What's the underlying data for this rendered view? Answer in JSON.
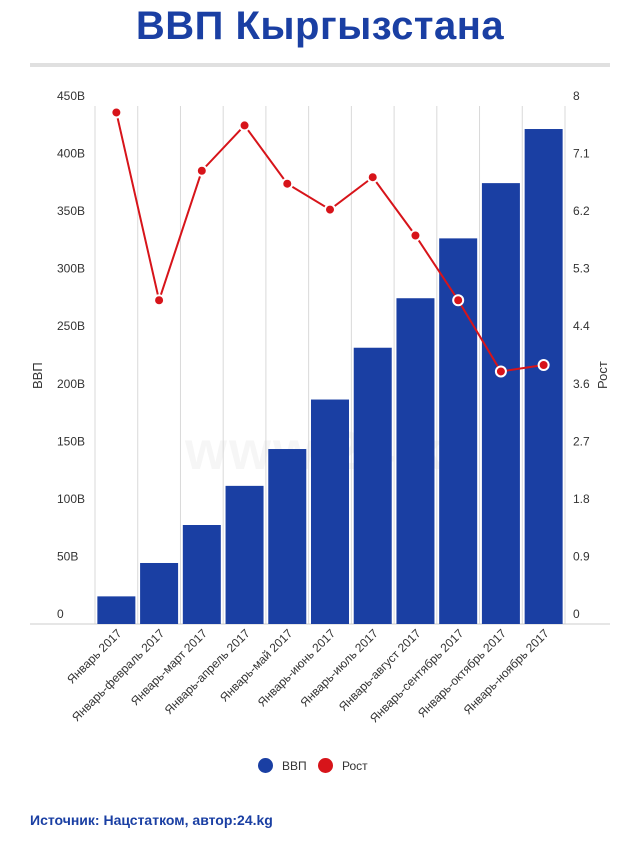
{
  "title": "ВВП Кыргызстана",
  "watermark": "www.24.kg",
  "source": "Источник: Нацстатком, автор:24.kg",
  "colors": {
    "title": "#1a3fa3",
    "bar": "#1a3fa3",
    "line": "#d7141a"
  },
  "chart_data": {
    "type": "bar+line",
    "categories": [
      "Январь 2017",
      "Январь-февраль 2017",
      "Январь-март 2017",
      "Январь-апрель 2017",
      "Январь-май 2017",
      "Январь-июнь 2017",
      "Январь-июль 2017",
      "Январь-август 2017",
      "Январь-сентябрь 2017",
      "Январь-октябрь 2017",
      "Январь-ноябрь 2017"
    ],
    "series": [
      {
        "name": "ВВП",
        "type": "bar",
        "axis": "left",
        "color": "#1a3fa3",
        "values": [
          24,
          53,
          86,
          120,
          152,
          195,
          240,
          283,
          335,
          383,
          430
        ]
      },
      {
        "name": "Рост",
        "type": "line",
        "axis": "right",
        "color": "#d7141a",
        "values": [
          7.9,
          5.0,
          7.0,
          7.7,
          6.8,
          6.4,
          6.9,
          6.0,
          5.0,
          3.9,
          4.0
        ]
      }
    ],
    "ylabel_left": "ВВП",
    "ylabel_right": "Рост",
    "ylim_left": [
      0,
      450
    ],
    "ylim_right": [
      0,
      8
    ],
    "yticks_left": [
      "0",
      "50B",
      "100B",
      "150B",
      "200B",
      "250B",
      "300B",
      "350B",
      "400B",
      "450B"
    ],
    "yticks_right": [
      "0",
      "0.9",
      "1.8",
      "2.7",
      "3.6",
      "4.4",
      "5.3",
      "6.2",
      "7.1",
      "8"
    ],
    "grid": "vertical",
    "legend_position": "bottom"
  }
}
